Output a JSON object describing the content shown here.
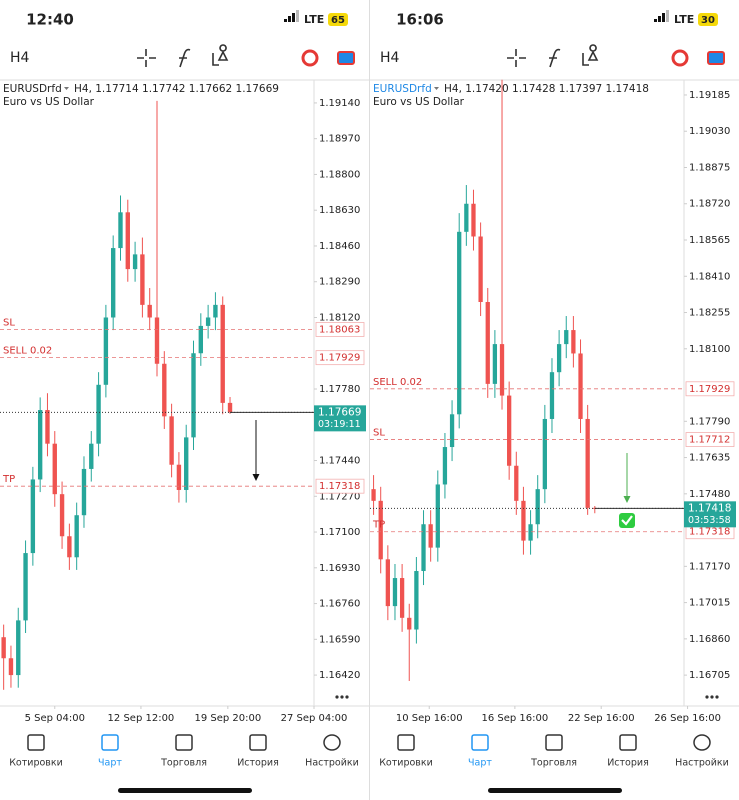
{
  "screens": [
    {
      "status_time": "12:40",
      "network": "LTE",
      "battery": "65",
      "timeframe": "H4",
      "symbol": "EURUSDrfd",
      "ohlc_text": "H4, 1.17714 1.17742 1.17662 1.17669",
      "description": "Euro vs US Dollar",
      "countdown": "03:19:11"
    },
    {
      "status_time": "16:06",
      "network": "LTE",
      "battery": "30",
      "timeframe": "H4",
      "symbol": "EURUSDrfd",
      "ohlc_text": "H4, 1.17420 1.17428 1.17397 1.17418",
      "description": "Euro vs US Dollar",
      "countdown": "03:53:58"
    }
  ],
  "nav": [
    "Котировки",
    "Чарт",
    "Торговля",
    "История",
    "Настройки"
  ],
  "chart_data": [
    {
      "type": "candlestick",
      "up_color": "#26a69a",
      "down_color": "#ef5350",
      "xlim": [
        0,
        43
      ],
      "ylim": [
        1.16273,
        1.19249
      ],
      "xticks": [
        {
          "value": 7.5,
          "label": "5 Sep 04:00"
        },
        {
          "value": 19.3,
          "label": "12 Sep 12:00"
        },
        {
          "value": 31.2,
          "label": "19 Sep 20:00"
        },
        {
          "value": 43,
          "label": "27 Sep 04:00"
        }
      ],
      "yticks": [
        {
          "value": 1.1914,
          "label": "1.19140"
        },
        {
          "value": 1.1897,
          "label": "1.18970"
        },
        {
          "value": 1.188,
          "label": "1.18800"
        },
        {
          "value": 1.1863,
          "label": "1.18630"
        },
        {
          "value": 1.1846,
          "label": "1.18460"
        },
        {
          "value": 1.1829,
          "label": "1.18290"
        },
        {
          "value": 1.1812,
          "label": "1.18120"
        },
        {
          "value": 1.1778,
          "label": "1.17780"
        },
        {
          "value": 1.1744,
          "label": "1.17440"
        },
        {
          "value": 1.1727,
          "label": "1.17270"
        },
        {
          "value": 1.171,
          "label": "1.17100"
        },
        {
          "value": 1.1693,
          "label": "1.16930"
        },
        {
          "value": 1.1676,
          "label": "1.16760"
        },
        {
          "value": 1.1659,
          "label": "1.16590"
        },
        {
          "value": 1.1642,
          "label": "1.16420"
        }
      ],
      "open": [
        1.166,
        1.165,
        1.1642,
        1.1668,
        1.17,
        1.1735,
        1.1768,
        1.1752,
        1.1728,
        1.1708,
        1.1698,
        1.1718,
        1.174,
        1.1752,
        1.178,
        1.1812,
        1.1845,
        1.1862,
        1.1835,
        1.1842,
        1.1818,
        1.1812,
        1.179,
        1.1765,
        1.1742,
        1.173,
        1.1755,
        1.1795,
        1.1808,
        1.1812,
        1.1818,
        1.17714
      ],
      "high": [
        1.1666,
        1.1656,
        1.1674,
        1.1706,
        1.1741,
        1.1774,
        1.1776,
        1.1758,
        1.1734,
        1.1714,
        1.1724,
        1.1746,
        1.1758,
        1.1786,
        1.1818,
        1.1851,
        1.187,
        1.1868,
        1.1848,
        1.185,
        1.1826,
        1.1915,
        1.1796,
        1.1771,
        1.1748,
        1.1761,
        1.1801,
        1.1814,
        1.1818,
        1.1824,
        1.1822,
        1.17742
      ],
      "low": [
        1.1635,
        1.1636,
        1.1636,
        1.1662,
        1.1694,
        1.1729,
        1.1746,
        1.1722,
        1.1702,
        1.1692,
        1.1692,
        1.1712,
        1.1734,
        1.1746,
        1.1774,
        1.1806,
        1.1839,
        1.1829,
        1.1829,
        1.1812,
        1.1806,
        1.1784,
        1.1759,
        1.1736,
        1.1724,
        1.1724,
        1.1749,
        1.1789,
        1.1802,
        1.1806,
        1.1766,
        1.17662
      ],
      "close": [
        1.165,
        1.1642,
        1.1668,
        1.17,
        1.1735,
        1.1768,
        1.1752,
        1.1728,
        1.1708,
        1.1698,
        1.1718,
        1.174,
        1.1752,
        1.178,
        1.1812,
        1.1845,
        1.1862,
        1.1835,
        1.1842,
        1.1818,
        1.1812,
        1.179,
        1.1765,
        1.1742,
        1.173,
        1.1755,
        1.1795,
        1.1808,
        1.1812,
        1.1818,
        1.17714,
        1.17669
      ],
      "levels": [
        {
          "name": "SL",
          "value": 1.18063
        },
        {
          "name": "SELL 0.02",
          "value": 1.17929
        },
        {
          "name": "TP",
          "value": 1.17318
        }
      ],
      "price": 1.17669
    },
    {
      "type": "candlestick",
      "up_color": "#26a69a",
      "down_color": "#ef5350",
      "xlim": [
        0,
        44
      ],
      "ylim": [
        1.16573,
        1.19249
      ],
      "xticks": [
        {
          "value": 8.3,
          "label": "10 Sep 16:00"
        },
        {
          "value": 20.3,
          "label": "16 Sep 16:00"
        },
        {
          "value": 32.4,
          "label": "22 Sep 16:00"
        },
        {
          "value": 44.5,
          "label": "26 Sep 16:00"
        }
      ],
      "yticks": [
        1.19185,
        {
          "value": 1.1903,
          "label": "1.19030"
        },
        1.18875,
        {
          "value": 1.1872,
          "label": "1.18720"
        },
        1.18565,
        {
          "value": 1.1841,
          "label": "1.18410"
        },
        1.18255,
        {
          "value": 1.181,
          "label": "1.18100"
        },
        {
          "value": 1.1779,
          "label": "1.17790"
        },
        1.17635,
        {
          "value": 1.1748,
          "label": "1.17480"
        },
        {
          "value": 1.1717,
          "label": "1.17170"
        },
        1.17015,
        {
          "value": 1.1686,
          "label": "1.16860"
        },
        1.16705
      ],
      "open": [
        1.175,
        1.1745,
        1.172,
        1.17,
        1.1712,
        1.1695,
        1.169,
        1.1715,
        1.1735,
        1.1725,
        1.1752,
        1.1768,
        1.1782,
        1.186,
        1.1872,
        1.1858,
        1.183,
        1.1795,
        1.1812,
        1.179,
        1.176,
        1.1745,
        1.1728,
        1.1735,
        1.175,
        1.178,
        1.18,
        1.1812,
        1.1818,
        1.1808,
        1.178,
        1.1742
      ],
      "high": [
        1.1756,
        1.1751,
        1.1726,
        1.1718,
        1.1718,
        1.1701,
        1.1721,
        1.1741,
        1.1741,
        1.1758,
        1.1774,
        1.1788,
        1.1868,
        1.188,
        1.1878,
        1.1864,
        1.1836,
        1.1818,
        1.1925,
        1.1796,
        1.1766,
        1.1751,
        1.1741,
        1.1756,
        1.1786,
        1.1806,
        1.1818,
        1.1824,
        1.1824,
        1.1814,
        1.1786,
        1.17428
      ],
      "low": [
        1.1739,
        1.1714,
        1.1694,
        1.1694,
        1.1689,
        1.1668,
        1.1684,
        1.1709,
        1.1719,
        1.1719,
        1.1746,
        1.1762,
        1.1776,
        1.1854,
        1.1852,
        1.1824,
        1.1789,
        1.1789,
        1.1784,
        1.1754,
        1.1739,
        1.1722,
        1.1722,
        1.1729,
        1.1744,
        1.1774,
        1.1794,
        1.1806,
        1.1802,
        1.1774,
        1.1739,
        1.17397
      ],
      "close": [
        1.1745,
        1.172,
        1.17,
        1.1712,
        1.1695,
        1.169,
        1.1715,
        1.1735,
        1.1725,
        1.1752,
        1.1768,
        1.1782,
        1.186,
        1.1872,
        1.1858,
        1.183,
        1.1795,
        1.1812,
        1.179,
        1.176,
        1.1745,
        1.1728,
        1.1735,
        1.175,
        1.178,
        1.18,
        1.1812,
        1.1818,
        1.1808,
        1.178,
        1.1742,
        1.17418
      ],
      "levels": [
        {
          "name": "SELL 0.02",
          "value": 1.17929
        },
        {
          "name": "SL",
          "value": 1.17712
        },
        {
          "name": "TP",
          "value": 1.17318
        }
      ],
      "price": 1.17418
    }
  ]
}
